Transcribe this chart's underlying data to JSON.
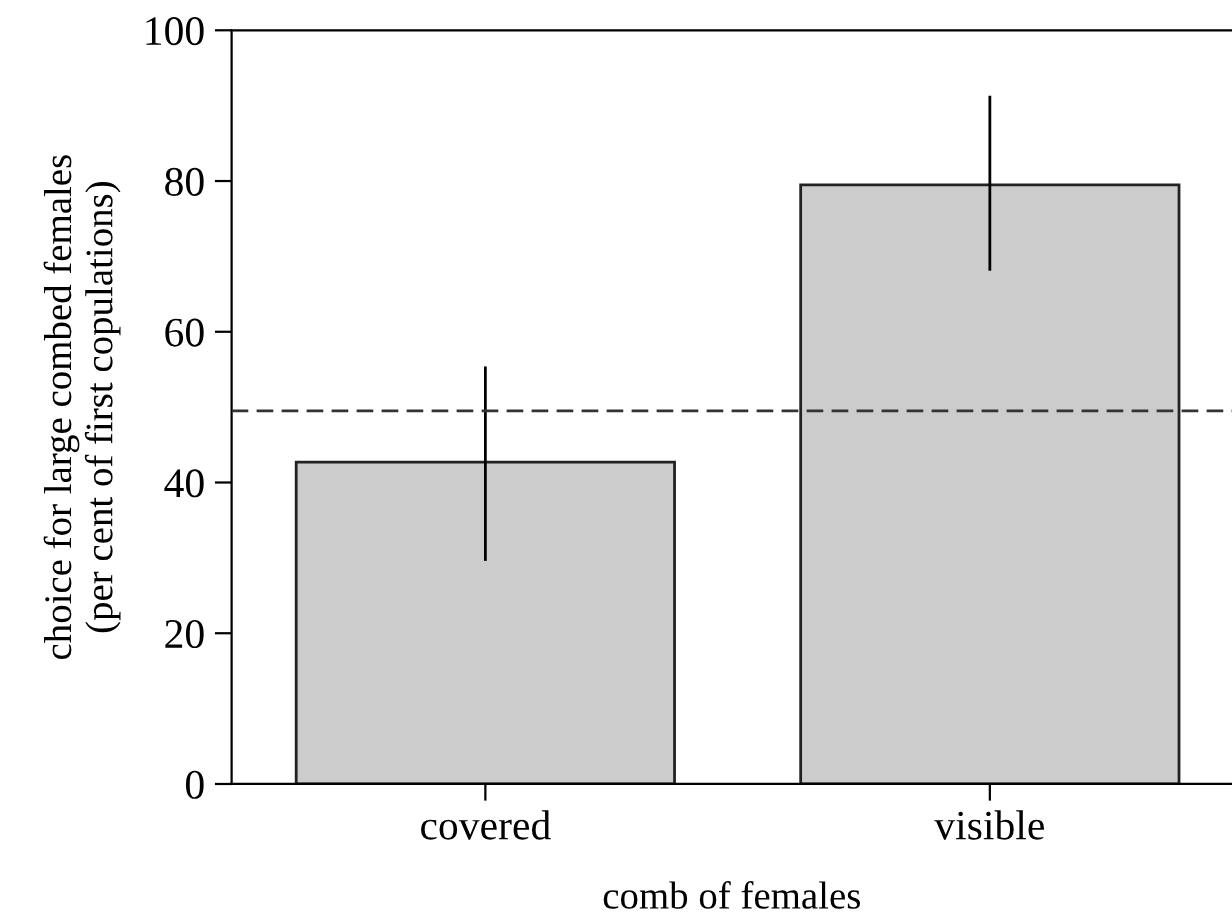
{
  "chart_data": {
    "type": "bar",
    "xlabel": "comb of females",
    "ylabel": "choice for large combed females\n(per cent of first copulations)",
    "categories": [
      "covered",
      "visible"
    ],
    "values": [
      42.7,
      79.5
    ],
    "errors": [
      [
        29.6,
        55.4
      ],
      [
        68.1,
        91.3
      ]
    ],
    "color": "#cccccc",
    "ylim": [
      0,
      100
    ],
    "yticks": [
      0,
      20,
      40,
      60,
      80,
      100
    ],
    "ref_lines": [
      {
        "axis": "y",
        "value": 49.5,
        "line_style": "dashed",
        "color": "#333333"
      }
    ],
    "grid": false,
    "legend": false
  }
}
